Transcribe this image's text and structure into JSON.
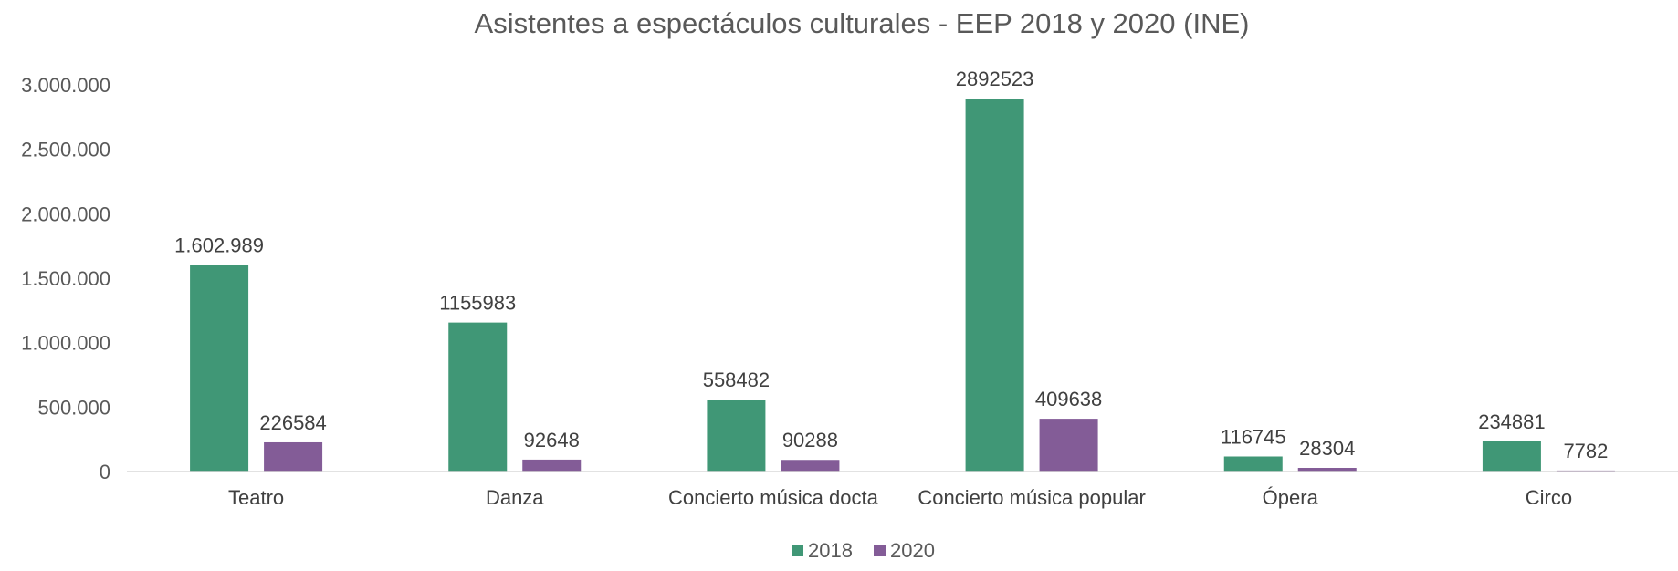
{
  "chart_data": {
    "type": "bar",
    "title": "Asistentes a espectáculos culturales  - EEP 2018 y 2020 (INE)",
    "xlabel": "",
    "ylabel": "",
    "ylim": [
      0,
      3000000
    ],
    "yticks": [
      0,
      500000,
      1000000,
      1500000,
      2000000,
      2500000,
      3000000
    ],
    "ytick_labels": [
      "0",
      "500.000",
      "1.000.000",
      "1.500.000",
      "2.000.000",
      "2.500.000",
      "3.000.000"
    ],
    "categories": [
      "Teatro",
      "Danza",
      "Concierto música docta",
      "Concierto música popular",
      "Ópera",
      "Circo"
    ],
    "series": [
      {
        "name": "2018",
        "color": "#409776",
        "values": [
          1602989,
          1155983,
          558482,
          2892523,
          116745,
          234881
        ],
        "labels": [
          "1.602.989",
          "1155983",
          "558482",
          "2892523",
          "116745",
          "234881"
        ]
      },
      {
        "name": "2020",
        "color": "#835C97",
        "values": [
          226584,
          92648,
          90288,
          409638,
          28304,
          7782
        ],
        "labels": [
          "226584",
          "92648",
          "90288",
          "409638",
          "28304",
          "7782"
        ]
      }
    ],
    "grid": false,
    "legend_position": "bottom"
  }
}
